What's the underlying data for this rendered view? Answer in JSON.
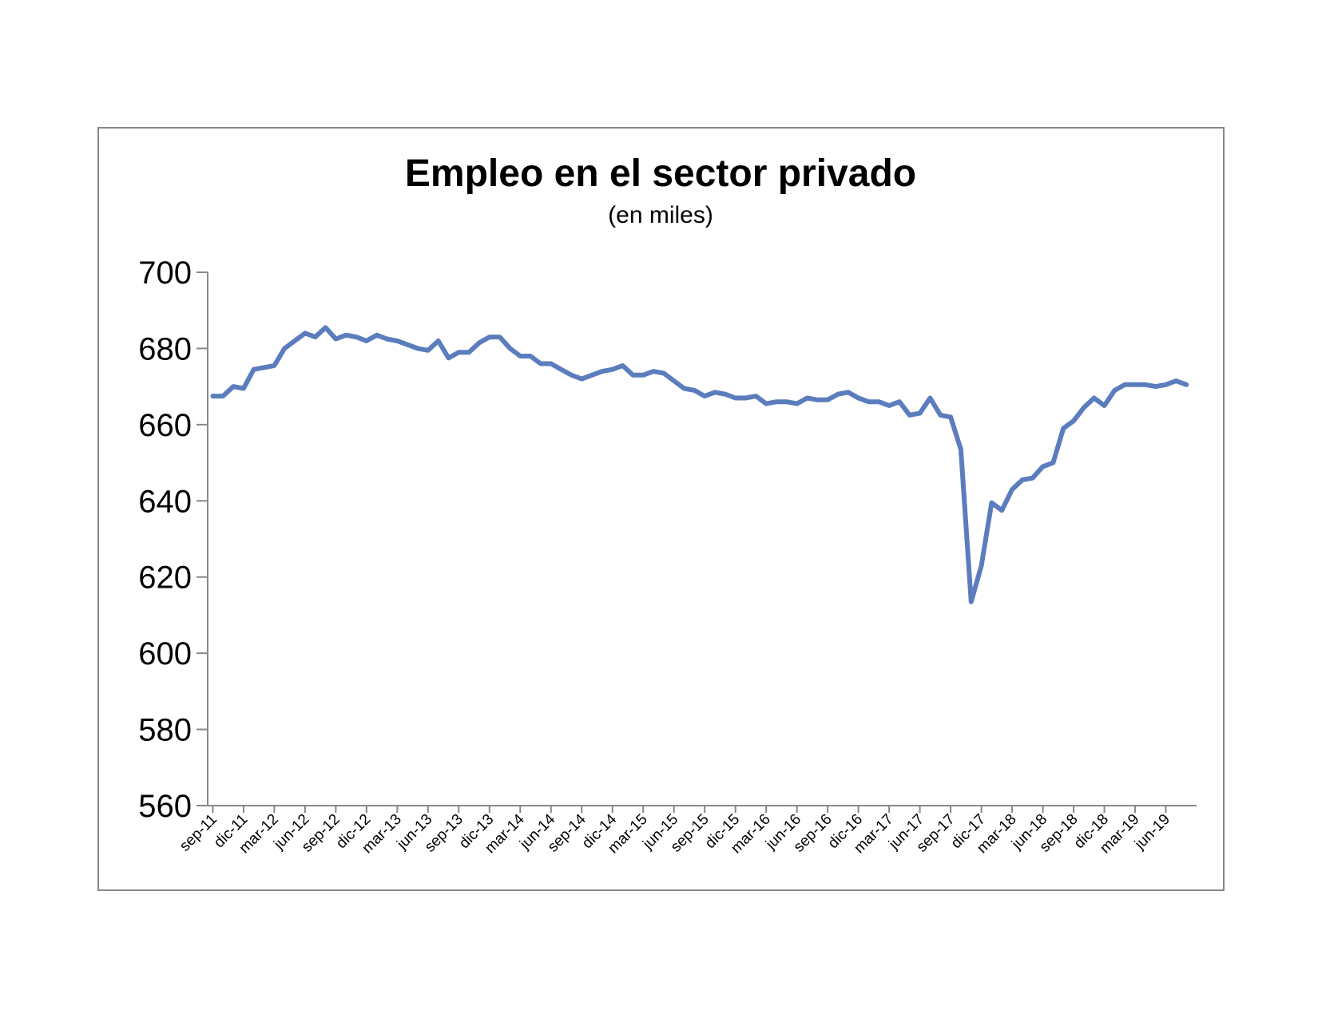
{
  "chart_data": {
    "type": "line",
    "title": "Empleo en el sector privado",
    "subtitle": "(en miles)",
    "xlabel": "",
    "ylabel": "",
    "ylim": [
      560,
      700
    ],
    "yticks": [
      560,
      580,
      600,
      620,
      640,
      660,
      680,
      700
    ],
    "grid": false,
    "legend": "none",
    "line_color": "#5B7DBD",
    "x_tick_labels": [
      "sep-11",
      "dic-11",
      "mar-12",
      "jun-12",
      "sep-12",
      "dic-12",
      "mar-13",
      "jun-13",
      "sep-13",
      "dic-13",
      "mar-14",
      "jun-14",
      "sep-14",
      "dic-14",
      "mar-15",
      "jun-15",
      "sep-15",
      "dic-15",
      "mar-16",
      "jun-16",
      "sep-16",
      "dic-16",
      "mar-17",
      "jun-17",
      "sep-17",
      "dic-17",
      "mar-18",
      "jun-18",
      "sep-18",
      "dic-18",
      "mar-19",
      "jun-19"
    ],
    "series": [
      {
        "values": [
          667.5,
          667.5,
          670,
          669.5,
          674.5,
          675,
          675.5,
          680,
          682,
          684,
          683,
          685.5,
          682.5,
          683.5,
          683,
          682,
          683.5,
          682.5,
          682,
          681,
          680,
          679.5,
          682,
          677.5,
          679,
          679,
          681.5,
          683,
          683,
          680,
          678,
          678,
          676,
          676,
          674.5,
          673,
          672,
          673,
          674,
          674.5,
          675.5,
          673,
          673,
          674,
          673.5,
          671.5,
          669.5,
          669,
          667.5,
          668.5,
          668,
          667,
          667,
          667.5,
          665.5,
          666,
          666,
          665.5,
          667,
          666.5,
          666.5,
          668,
          668.5,
          667,
          666,
          666,
          665,
          666,
          662.5,
          663,
          667,
          662.5,
          662,
          653.5,
          613.5,
          623,
          639.5,
          637.5,
          643,
          645.5,
          646,
          649,
          650,
          659,
          661,
          664.5,
          667,
          665,
          669,
          670.5,
          670.5,
          670.5,
          670,
          670.5,
          671.5,
          670.5
        ]
      }
    ]
  }
}
